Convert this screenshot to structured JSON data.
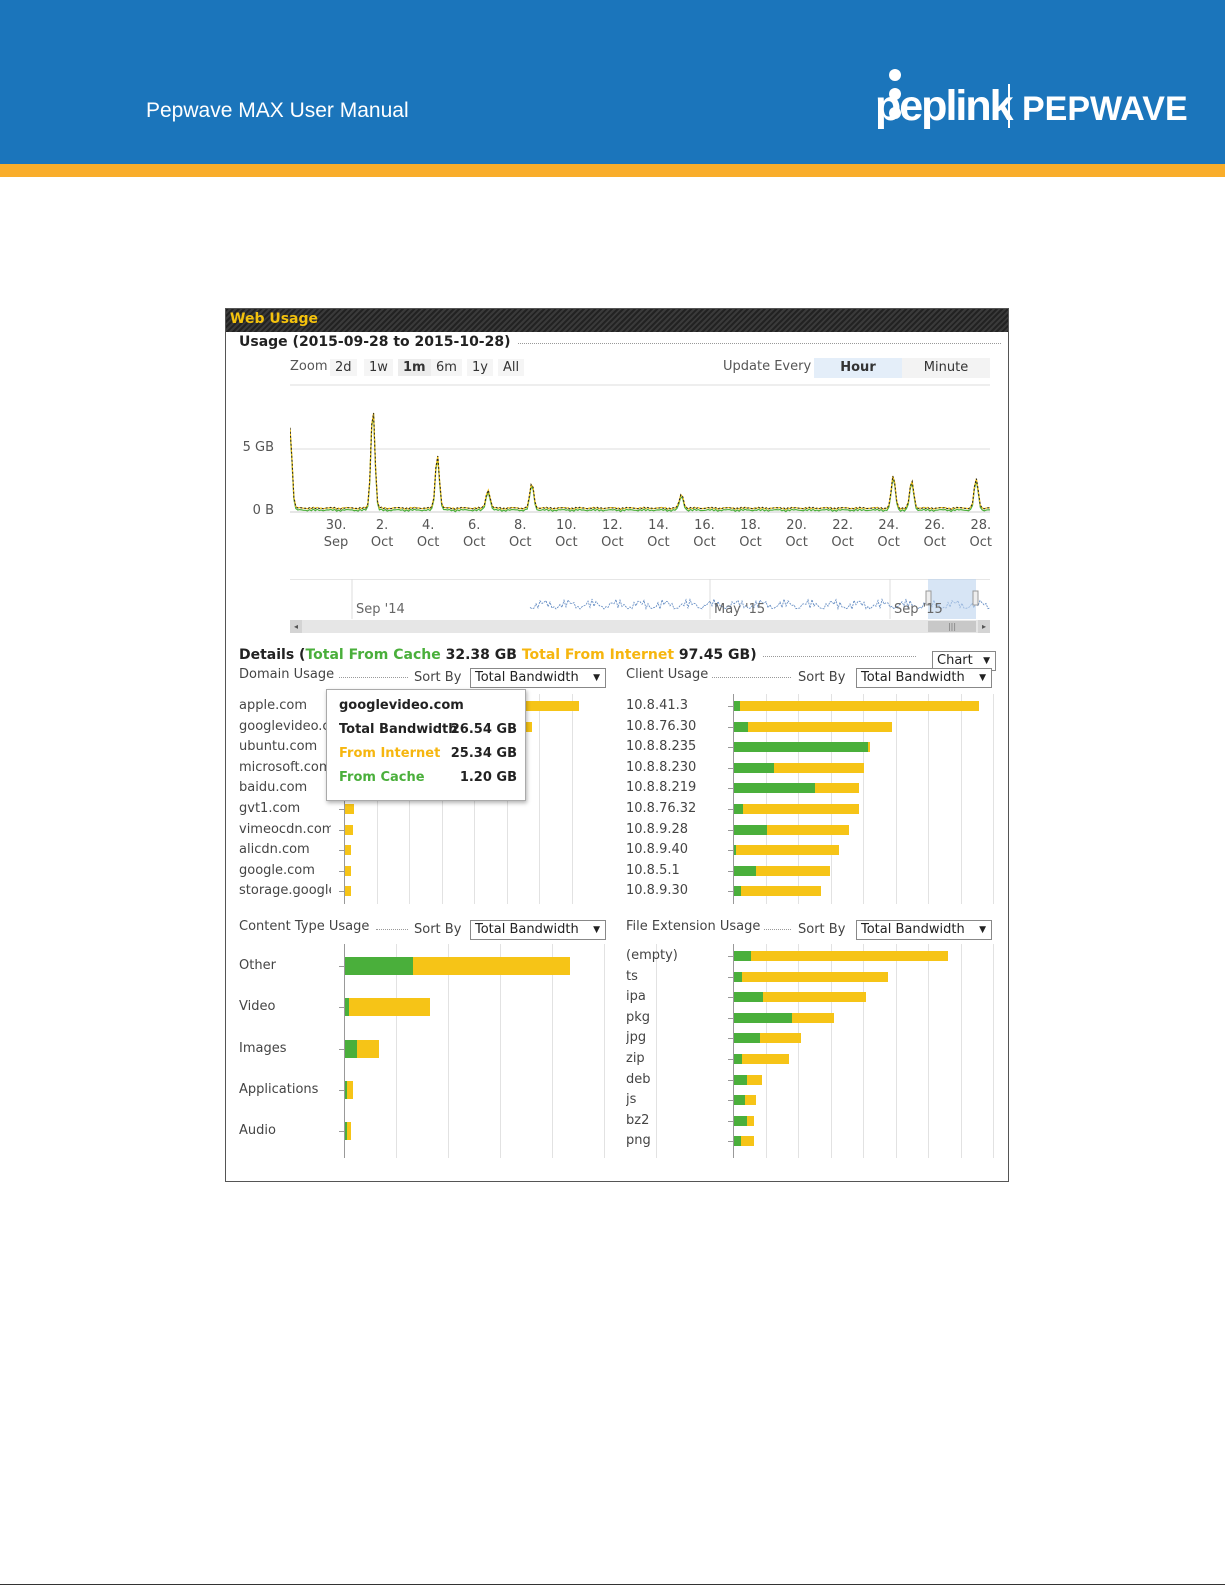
{
  "header": {
    "manual_title": "Pepwave MAX User Manual",
    "brand_left": "peplink",
    "brand_right": "PEPWAVE",
    "colors": {
      "blue": "#1b75bb",
      "orange": "#f9ad2b"
    }
  },
  "panel": {
    "title": "Web Usage",
    "usage_title": "Usage (2015-09-28 to 2015-10-28)",
    "zoom_label": "Zoom",
    "zoom_options": [
      "2d",
      "1w",
      "1m",
      "6m",
      "1y",
      "All"
    ],
    "zoom_selected": "1m",
    "update_label": "Update Every",
    "update_options": [
      "Hour",
      "Minute"
    ],
    "update_selected": "Hour"
  },
  "chart_data": {
    "type": "line",
    "y_tick_labels": [
      "5 GB",
      "0 B"
    ],
    "x_ticks": [
      [
        "30.",
        "Sep"
      ],
      [
        "2.",
        "Oct"
      ],
      [
        "4.",
        "Oct"
      ],
      [
        "6.",
        "Oct"
      ],
      [
        "8.",
        "Oct"
      ],
      [
        "10.",
        "Oct"
      ],
      [
        "12.",
        "Oct"
      ],
      [
        "14.",
        "Oct"
      ],
      [
        "16.",
        "Oct"
      ],
      [
        "18.",
        "Oct"
      ],
      [
        "20.",
        "Oct"
      ],
      [
        "22.",
        "Oct"
      ],
      [
        "24.",
        "Oct"
      ],
      [
        "26.",
        "Oct"
      ],
      [
        "28.",
        "Oct"
      ]
    ],
    "navigator_labels": [
      "Sep '14",
      "May '15",
      "Sep '15"
    ],
    "peaks_gb": [
      {
        "day": 0.0,
        "value": 6.5
      },
      {
        "day": 3.6,
        "value": 8.1
      },
      {
        "day": 6.4,
        "value": 4.3
      },
      {
        "day": 8.6,
        "value": 1.5
      },
      {
        "day": 10.5,
        "value": 2.0
      },
      {
        "day": 17.0,
        "value": 1.1
      },
      {
        "day": 26.2,
        "value": 2.6
      },
      {
        "day": 27.0,
        "value": 2.2
      },
      {
        "day": 29.8,
        "value": 2.4
      }
    ]
  },
  "details": {
    "label": "Details",
    "cache_label": "Total From Cache",
    "cache_value": "32.38 GB",
    "internet_label": "Total From Internet",
    "internet_value": "97.45 GB",
    "view_select": "Chart",
    "sort_label": "Sort By",
    "sort_value": "Total Bandwidth",
    "colors": {
      "cache": "#4aaf3b",
      "internet": "#f6c417"
    }
  },
  "domain_usage": {
    "title": "Domain Usage",
    "rows": [
      {
        "label": "apple.com",
        "cache": 0.0,
        "internet": 1.0
      },
      {
        "label": "googlevideo.com",
        "cache": 0.0,
        "internet": 0.8
      },
      {
        "label": "ubuntu.com",
        "cache": 0.0,
        "internet": 0.0
      },
      {
        "label": "microsoft.com",
        "cache": 0.0,
        "internet": 0.0
      },
      {
        "label": "baidu.com",
        "cache": 0.0,
        "internet": 0.0
      },
      {
        "label": "gvt1.com",
        "cache": 0.0,
        "internet": 0.04
      },
      {
        "label": "vimeocdn.com",
        "cache": 0.0,
        "internet": 0.035
      },
      {
        "label": "alicdn.com",
        "cache": 0.0,
        "internet": 0.025
      },
      {
        "label": "google.com",
        "cache": 0.0,
        "internet": 0.025
      },
      {
        "label": "storage.googleapis.com",
        "cache": 0.0,
        "internet": 0.025
      }
    ]
  },
  "tooltip": {
    "title": "googlevideo.com",
    "rows": [
      {
        "label": "Total Bandwidth",
        "value": "26.54 GB"
      },
      {
        "label": "From Internet",
        "value": "25.34 GB"
      },
      {
        "label": "From Cache",
        "value": "1.20 GB"
      }
    ]
  },
  "client_usage": {
    "title": "Client Usage",
    "rows": [
      {
        "label": "10.8.41.3",
        "cache": 0.025,
        "internet": 0.975
      },
      {
        "label": "10.8.76.30",
        "cache": 0.058,
        "internet": 0.585
      },
      {
        "label": "10.8.8.235",
        "cache": 0.545,
        "internet": 0.01
      },
      {
        "label": "10.8.8.230",
        "cache": 0.165,
        "internet": 0.365
      },
      {
        "label": "10.8.8.219",
        "cache": 0.33,
        "internet": 0.18
      },
      {
        "label": "10.8.76.32",
        "cache": 0.035,
        "internet": 0.475
      },
      {
        "label": "10.8.9.28",
        "cache": 0.135,
        "internet": 0.335
      },
      {
        "label": "10.8.9.40",
        "cache": 0.008,
        "internet": 0.42
      },
      {
        "label": "10.8.5.1",
        "cache": 0.09,
        "internet": 0.3
      },
      {
        "label": "10.8.9.30",
        "cache": 0.03,
        "internet": 0.325
      }
    ]
  },
  "content_type_usage": {
    "title": "Content Type Usage",
    "rows": [
      {
        "label": "Other",
        "cache": 0.3,
        "internet": 0.7
      },
      {
        "label": "Video",
        "cache": 0.018,
        "internet": 0.362
      },
      {
        "label": "Images",
        "cache": 0.055,
        "internet": 0.095
      },
      {
        "label": "Applications",
        "cache": 0.008,
        "internet": 0.028
      },
      {
        "label": "Audio",
        "cache": 0.008,
        "internet": 0.018
      }
    ]
  },
  "file_extension_usage": {
    "title": "File Extension Usage",
    "rows": [
      {
        "label": "(empty)",
        "cache": 0.07,
        "internet": 0.82
      },
      {
        "label": "ts",
        "cache": 0.035,
        "internet": 0.605
      },
      {
        "label": "ipa",
        "cache": 0.12,
        "internet": 0.43
      },
      {
        "label": "pkg",
        "cache": 0.24,
        "internet": 0.175
      },
      {
        "label": "jpg",
        "cache": 0.11,
        "internet": 0.17
      },
      {
        "label": "zip",
        "cache": 0.035,
        "internet": 0.195
      },
      {
        "label": "deb",
        "cache": 0.055,
        "internet": 0.06
      },
      {
        "label": "js",
        "cache": 0.045,
        "internet": 0.045
      },
      {
        "label": "bz2",
        "cache": 0.055,
        "internet": 0.028
      },
      {
        "label": "png",
        "cache": 0.03,
        "internet": 0.055
      }
    ]
  }
}
